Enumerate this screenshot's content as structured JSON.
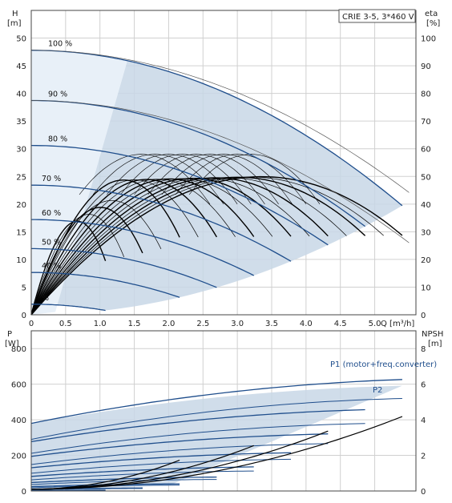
{
  "chart_data": [
    {
      "type": "line",
      "title": "CRIE 3-5, 3*460 V",
      "ylabel_left": "H",
      "ylabel_left_unit": "[m]",
      "ylabel_right": "eta",
      "ylabel_right_unit": "[%]",
      "xlabel": "Q [m³/h]",
      "xlim": [
        0,
        5.6
      ],
      "ylim": [
        0,
        55
      ],
      "ylim_right": [
        0,
        110
      ],
      "xticks": [
        "0",
        "0.5",
        "1.0",
        "1.5",
        "2.0",
        "2.5",
        "3.0",
        "3.5",
        "4.0",
        "4.5",
        "5.0"
      ],
      "yticks_left": [
        "0",
        "5",
        "10",
        "15",
        "20",
        "25",
        "30",
        "35",
        "40",
        "45",
        "50"
      ],
      "yticks_right": [
        "0",
        "10",
        "20",
        "30",
        "40",
        "50",
        "60",
        "70",
        "80",
        "90",
        "100"
      ],
      "grid": true,
      "series": [
        {
          "name": "100 %",
          "kind": "head",
          "speed": 1.0
        },
        {
          "name": "90 %",
          "kind": "head",
          "speed": 0.9
        },
        {
          "name": "80 %",
          "kind": "head",
          "speed": 0.8
        },
        {
          "name": "70 %",
          "kind": "head",
          "speed": 0.7
        },
        {
          "name": "60 %",
          "kind": "head",
          "speed": 0.6
        },
        {
          "name": "50 %",
          "kind": "head",
          "speed": 0.5
        },
        {
          "name": "40 %",
          "kind": "head",
          "speed": 0.4
        },
        {
          "name": "% ",
          "kind": "head",
          "speed": 0.2
        }
      ],
      "head_curve_100": {
        "shutoff_m": 47.8,
        "coef": 0.963,
        "qmax": 5.4
      },
      "eta_curve_100": {
        "peak_q": 3.5,
        "peak_pct": 49.8
      }
    },
    {
      "type": "line",
      "ylabel_left": "P",
      "ylabel_left_unit": "[W]",
      "ylabel_right": "NPSH",
      "ylabel_right_unit": "[m]",
      "xlim": [
        0,
        5.6
      ],
      "ylim": [
        0,
        900
      ],
      "ylim_right": [
        0,
        9
      ],
      "yticks_left": [
        "0",
        "200",
        "400",
        "600",
        "800"
      ],
      "yticks_right": [
        "0",
        "2",
        "4",
        "6",
        "8"
      ],
      "grid": true,
      "series": [
        {
          "name": "P1 (motor+freq.converter)",
          "kind": "P1"
        },
        {
          "name": "P2",
          "kind": "P2"
        }
      ]
    }
  ]
}
